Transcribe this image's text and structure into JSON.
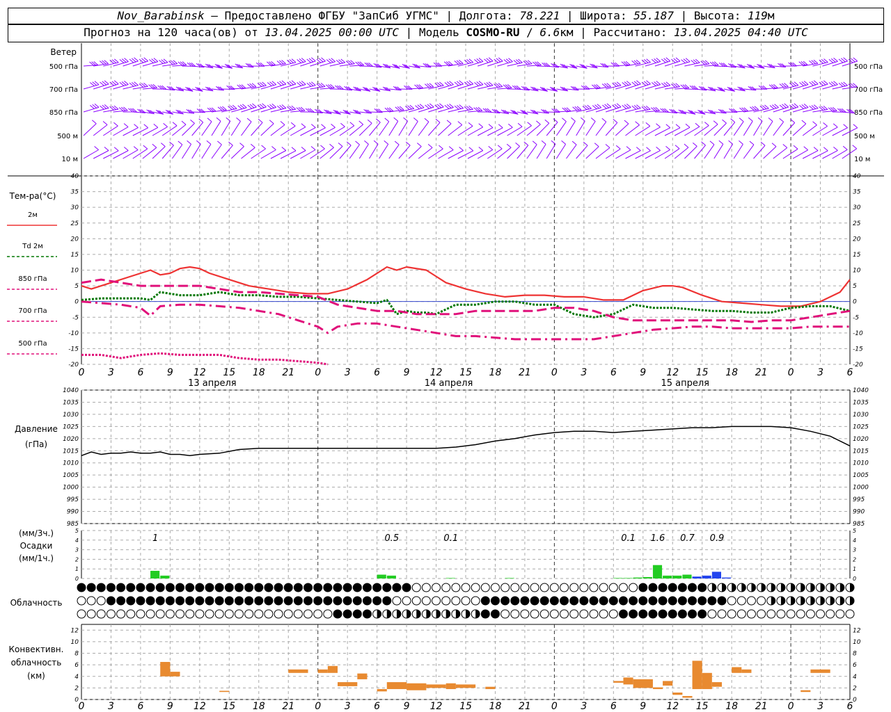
{
  "header": {
    "station": "Nov_Barabinsk",
    "dash": " – ",
    "provider": "Предоставлено ФГБУ \"ЗапСиб УГМС\"",
    "lon_label": "Долгота:",
    "lon_value": "78.221",
    "lat_label": "Широта:",
    "lat_value": "55.187",
    "alt_label": "Высота:",
    "alt_value": "119",
    "alt_unit": "м",
    "forecast_label": "Прогноз на 120 часа(ов) от",
    "forecast_date": "13.04.2025 00:00 UTC",
    "model_label": "Модель",
    "model_name": "COSMO-RU",
    "model_res": "6.6",
    "model_res_unit": "км",
    "calc_label": "Рассчитано:",
    "calc_date": "13.04.2025 04:40 UTC",
    "sep": " | "
  },
  "wind_panel": {
    "title": "Ветер",
    "levels": [
      "500 гПа",
      "700 гПа",
      "850 гПа",
      "500 м",
      "10 м"
    ],
    "color": "#8b00ff"
  },
  "temp_panel": {
    "title": "Тем-ра(°C)",
    "legend": [
      {
        "label": "2м",
        "color": "#ee3333",
        "style": "solid"
      },
      {
        "label": "Td 2м",
        "color": "#007700",
        "style": "dotted"
      },
      {
        "label": "850 гПа",
        "color": "#e0107a",
        "style": "dashed"
      },
      {
        "label": "700 гПа",
        "color": "#e0107a",
        "style": "dashdot"
      },
      {
        "label": "500 гПа",
        "color": "#e0107a",
        "style": "dense"
      }
    ]
  },
  "pressure_panel": {
    "title": "Давление",
    "unit": "(гПа)"
  },
  "precip_panel": {
    "title_unit_3h": "(мм/3ч.)",
    "title": "Осадки",
    "title_unit_1h": "(мм/1ч.)",
    "totals": [
      {
        "hour": 7.5,
        "label": "1"
      },
      {
        "hour": 31.5,
        "label": "0.5"
      },
      {
        "hour": 37.5,
        "label": "0.1"
      },
      {
        "hour": 55.5,
        "label": "0.1"
      },
      {
        "hour": 58.5,
        "label": "1.6"
      },
      {
        "hour": 61.5,
        "label": "0.7"
      },
      {
        "hour": 64.5,
        "label": "0.9"
      }
    ]
  },
  "cloud_panel": {
    "title": "Облачность"
  },
  "convective_panel": {
    "title_line1": "Конвективн.",
    "title_line2": "облачность",
    "title_line3": "(км)"
  },
  "days": [
    {
      "hour": 12,
      "label": "13 апреля"
    },
    {
      "hour": 36,
      "label": "14 апреля"
    },
    {
      "hour": 60,
      "label": "15 апреля"
    }
  ],
  "chart_data": [
    {
      "type": "line",
      "title": "Тем-ра(°C)",
      "ylim": [
        -20,
        40
      ],
      "yticks": [
        -20,
        -15,
        -10,
        -5,
        0,
        5,
        10,
        15,
        20,
        25,
        30,
        35,
        40
      ],
      "x_hour_ticks": [
        "0",
        "3",
        "6",
        "9",
        "12",
        "15",
        "18",
        "21",
        "0",
        "3",
        "6",
        "9",
        "12",
        "15",
        "18",
        "21",
        "0",
        "3",
        "6",
        "9",
        "12",
        "15",
        "18",
        "21",
        "0",
        "3",
        "6"
      ],
      "x_range_hours": [
        0,
        78
      ],
      "grid": true,
      "series": [
        {
          "name": "2м",
          "x": [
            0,
            1,
            3,
            5,
            7,
            8,
            9,
            10,
            11,
            12,
            13,
            15,
            17,
            19,
            21,
            23,
            24,
            25,
            27,
            29,
            31,
            32,
            33,
            35,
            36,
            37,
            39,
            41,
            43,
            45,
            47,
            49,
            51,
            53,
            55,
            56,
            57,
            59,
            60,
            61,
            63,
            65,
            67,
            69,
            71,
            73,
            75,
            77,
            78
          ],
          "y": [
            5,
            4,
            6,
            8,
            10,
            8.5,
            9,
            10.5,
            11,
            10.5,
            9,
            7,
            5,
            4,
            3,
            2.5,
            2.5,
            2.5,
            4,
            7,
            11,
            10,
            11,
            10,
            8,
            6,
            4,
            2.5,
            1.5,
            2,
            2,
            1.5,
            1.5,
            0.5,
            0.5,
            2,
            3.5,
            5,
            5,
            4.5,
            2,
            0,
            -0.5,
            -1,
            -1.5,
            -1.5,
            0,
            3,
            7
          ]
        },
        {
          "name": "Td 2м",
          "x": [
            0,
            2,
            4,
            6,
            7,
            8,
            10,
            12,
            14,
            16,
            18,
            20,
            22,
            24,
            26,
            28,
            30,
            31,
            32,
            33,
            34,
            35,
            36,
            38,
            40,
            42,
            44,
            46,
            48,
            50,
            52,
            54,
            56,
            58,
            60,
            62,
            64,
            66,
            68,
            70,
            72,
            74,
            76,
            78
          ],
          "y": [
            0.5,
            1,
            1,
            1,
            0.5,
            3,
            2,
            2,
            3,
            2,
            2,
            1.5,
            1.5,
            1,
            0.5,
            0,
            -0.5,
            0.5,
            -4,
            -3,
            -3.5,
            -3.5,
            -4,
            -1,
            -1,
            0,
            0,
            -1,
            -1,
            -4,
            -5,
            -4,
            -1,
            -2,
            -2,
            -2.5,
            -3,
            -3,
            -3.5,
            -3.5,
            -2,
            -1.5,
            -1.5,
            -3
          ]
        },
        {
          "name": "850 гПа",
          "x": [
            0,
            2,
            4,
            6,
            7,
            8,
            10,
            12,
            14,
            16,
            18,
            20,
            22,
            24,
            26,
            28,
            30,
            32,
            34,
            36,
            38,
            40,
            42,
            44,
            46,
            48,
            50,
            52,
            54,
            56,
            58,
            60,
            62,
            64,
            66,
            68,
            70,
            72,
            74,
            76,
            78
          ],
          "y": [
            6,
            7,
            6,
            5,
            5,
            5,
            5,
            5,
            4,
            3,
            3,
            2.5,
            2,
            1.5,
            -1,
            -2,
            -3,
            -3,
            -4,
            -4,
            -4,
            -3,
            -3,
            -3,
            -3,
            -2,
            -2,
            -3,
            -5,
            -6,
            -6,
            -6,
            -6,
            -6,
            -6,
            -6.5,
            -6,
            -6,
            -5,
            -4,
            -3
          ]
        },
        {
          "name": "700 гПа",
          "x": [
            0,
            2,
            4,
            6,
            7,
            8,
            10,
            12,
            14,
            16,
            18,
            20,
            22,
            24,
            25,
            26,
            28,
            30,
            32,
            34,
            36,
            38,
            40,
            42,
            44,
            46,
            48,
            50,
            52,
            54,
            56,
            58,
            60,
            62,
            64,
            66,
            68,
            70,
            72,
            74,
            76,
            78
          ],
          "y": [
            0,
            -0.5,
            -1,
            -2,
            -4.5,
            -1.5,
            -1,
            -1,
            -1.5,
            -2,
            -3,
            -4,
            -6,
            -8,
            -10,
            -8,
            -7,
            -7,
            -8,
            -9,
            -10,
            -11,
            -11,
            -11.5,
            -12,
            -12,
            -12,
            -12,
            -12,
            -11,
            -10,
            -9,
            -8.5,
            -8,
            -8,
            -8.5,
            -8.5,
            -8.5,
            -8.5,
            -8,
            -8,
            -8
          ]
        },
        {
          "name": "500 гПа",
          "x": [
            0,
            2,
            4,
            6,
            8,
            10,
            12,
            14,
            16,
            18,
            20,
            22,
            24,
            25
          ],
          "y": [
            -17,
            -17,
            -18,
            -17,
            -16.5,
            -17,
            -17,
            -17,
            -18,
            -18.5,
            -18.5,
            -19,
            -19.5,
            -20
          ]
        }
      ]
    },
    {
      "type": "line",
      "title": "Давление",
      "ylabel": "(гПа)",
      "ylim": [
        985,
        1040
      ],
      "yticks": [
        985,
        990,
        995,
        1000,
        1005,
        1010,
        1015,
        1020,
        1025,
        1030,
        1035,
        1040
      ],
      "series": [
        {
          "x": [
            0,
            1,
            2,
            3,
            4,
            5,
            6,
            7,
            8,
            9,
            10,
            11,
            12,
            14,
            16,
            18,
            20,
            22,
            24,
            26,
            28,
            30,
            32,
            34,
            36,
            38,
            40,
            42,
            44,
            46,
            48,
            50,
            52,
            54,
            56,
            58,
            60,
            62,
            64,
            66,
            68,
            70,
            72,
            74,
            76,
            78
          ],
          "y": [
            1013,
            1014.5,
            1013.5,
            1014,
            1014,
            1014.5,
            1014,
            1014,
            1014.5,
            1013.5,
            1013.5,
            1013,
            1013.5,
            1014,
            1015.5,
            1016,
            1016,
            1016,
            1016,
            1016,
            1016,
            1016,
            1016,
            1016,
            1016,
            1016.5,
            1017.5,
            1019,
            1020,
            1021.5,
            1022.5,
            1023,
            1023,
            1022.5,
            1023,
            1023.5,
            1024,
            1024.5,
            1024.5,
            1025,
            1025,
            1025,
            1024.5,
            1023,
            1021,
            1017
          ]
        }
      ]
    },
    {
      "type": "bar",
      "title": "Осадки",
      "ylabel": "(мм/1ч.)",
      "ylim": [
        0,
        5
      ],
      "series": [
        {
          "name": "rain",
          "color": "#22cc22",
          "x": [
            7,
            8,
            30,
            31,
            37,
            43,
            54,
            55,
            56,
            57,
            58,
            59,
            60,
            61
          ],
          "y": [
            0.8,
            0.3,
            0.4,
            0.3,
            0.05,
            0.05,
            0.05,
            0.05,
            0.1,
            0.15,
            1.4,
            0.3,
            0.3,
            0.4
          ]
        },
        {
          "name": "snow",
          "color": "#2244ee",
          "x": [
            62,
            63,
            64,
            65
          ],
          "y": [
            0.2,
            0.3,
            0.7,
            0.1
          ]
        }
      ]
    },
    {
      "type": "bar",
      "title": "Конвективн. облачность",
      "ylabel": "(км)",
      "ylim": [
        0,
        13
      ],
      "yticks": [
        0,
        2,
        4,
        6,
        8,
        10,
        12
      ],
      "series": [
        {
          "color": "#e88a30",
          "ranges": [
            [
              8,
              9,
              4,
              6.5
            ],
            [
              9,
              10,
              4,
              4.8
            ],
            [
              14,
              15,
              1.3,
              1.5
            ],
            [
              21,
              23,
              4.6,
              5.2
            ],
            [
              24,
              25,
              4.6,
              5.2
            ],
            [
              25,
              26,
              4.6,
              5.8
            ],
            [
              26,
              28,
              2.3,
              3
            ],
            [
              28,
              29,
              3.5,
              4.5
            ],
            [
              30,
              31,
              1.4,
              1.8
            ],
            [
              31,
              33,
              1.8,
              3
            ],
            [
              33,
              35,
              1.6,
              2.8
            ],
            [
              35,
              37,
              2,
              2.6
            ],
            [
              37,
              38,
              1.8,
              2.8
            ],
            [
              38,
              40,
              2,
              2.6
            ],
            [
              41,
              42,
              1.8,
              2.2
            ],
            [
              54,
              55,
              2.9,
              3.2
            ],
            [
              55,
              56,
              2.6,
              3.8
            ],
            [
              56,
              58,
              2,
              3.5
            ],
            [
              58,
              59,
              1.8,
              2.1
            ],
            [
              59,
              60,
              2.4,
              3.2
            ],
            [
              60,
              61,
              0.8,
              1.2
            ],
            [
              61,
              62,
              0.3,
              0.6
            ],
            [
              62,
              63,
              1.8,
              6.7
            ],
            [
              63,
              64,
              1.8,
              4.6
            ],
            [
              64,
              65,
              2.2,
              3
            ],
            [
              66,
              67,
              4.6,
              5.6
            ],
            [
              67,
              68,
              4.6,
              5.2
            ],
            [
              73,
              74,
              1.3,
              1.6
            ],
            [
              74,
              76,
              4.6,
              5.2
            ]
          ]
        }
      ]
    }
  ]
}
